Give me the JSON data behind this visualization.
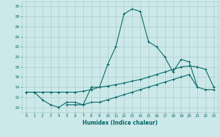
{
  "xlabel": "Humidex (Indice chaleur)",
  "x_values": [
    0,
    1,
    2,
    3,
    4,
    5,
    6,
    7,
    8,
    9,
    10,
    11,
    12,
    13,
    14,
    15,
    16,
    17,
    18,
    19,
    20,
    21,
    22,
    23
  ],
  "line_main": [
    13,
    13,
    11.5,
    10.5,
    10,
    11,
    11,
    10.5,
    14,
    14,
    18.5,
    22,
    28.5,
    29.5,
    29,
    23,
    22,
    20,
    17,
    19.5,
    19,
    14,
    null,
    null
  ],
  "line_upper": [
    13,
    13,
    13,
    13,
    13,
    13,
    13,
    13.2,
    13.5,
    14,
    14.2,
    14.5,
    14.8,
    15.2,
    15.5,
    16,
    16.5,
    17,
    17.5,
    18,
    18.2,
    18,
    17.5,
    14
  ],
  "line_lower": [
    null,
    null,
    null,
    null,
    null,
    10.5,
    10.5,
    10.5,
    11,
    11,
    11.5,
    12,
    12.5,
    13,
    13.5,
    14,
    14.5,
    15,
    15.5,
    16,
    16.5,
    14,
    13.5,
    13.5
  ],
  "bg_color": "#cce8e8",
  "grid_color": "#aacccc",
  "line_color": "#006666",
  "ylim": [
    9,
    31
  ],
  "xlim": [
    -0.5,
    23.5
  ],
  "yticks": [
    10,
    12,
    14,
    16,
    18,
    20,
    22,
    24,
    26,
    28,
    30
  ],
  "xticks": [
    0,
    1,
    2,
    3,
    4,
    5,
    6,
    7,
    8,
    9,
    10,
    11,
    12,
    13,
    14,
    15,
    16,
    17,
    18,
    19,
    20,
    21,
    22,
    23
  ]
}
